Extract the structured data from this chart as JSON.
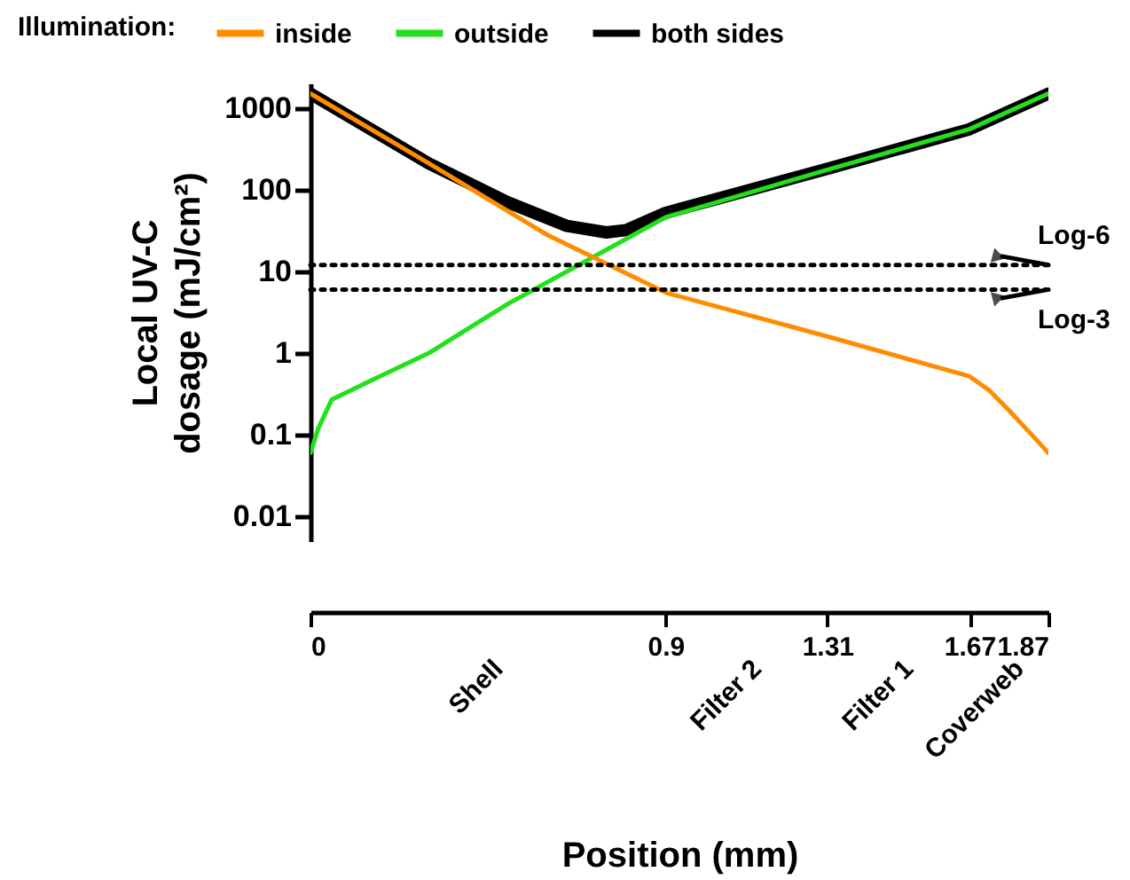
{
  "chart_data": {
    "type": "line",
    "xlabel": "Position (mm)",
    "ylabel": "Local UV-C dosage (mJ/cm²)",
    "legend_title": "Illumination:",
    "legend": "top",
    "log": "y",
    "xlim": [
      0,
      1.87
    ],
    "xticks": [
      0,
      0.9,
      1.31,
      1.67,
      1.87
    ],
    "ylim": [
      0.005,
      2000
    ],
    "yticks": [
      0.01,
      0.1,
      1,
      10,
      100,
      1000
    ],
    "series": [
      {
        "name": "inside",
        "color": "#ff8c00",
        "x": [
          0,
          0.3,
          0.6,
          0.9,
          1.31,
          1.67,
          1.72,
          1.77,
          1.82,
          1.87
        ],
        "values": [
          1500,
          210,
          28,
          5.5,
          1.6,
          0.52,
          0.35,
          0.2,
          0.11,
          0.06
        ]
      },
      {
        "name": "outside",
        "color": "#22e01c",
        "x": [
          0,
          0.02,
          0.054,
          0.144,
          0.3,
          0.5,
          0.65,
          0.9,
          1.31,
          1.67,
          1.87
        ],
        "values": [
          0.06,
          0.12,
          0.27,
          0.44,
          1,
          4,
          10,
          46,
          175,
          550,
          1500
        ]
      },
      {
        "name": "both sides",
        "color": "#000000",
        "x": [
          0,
          0.3,
          0.5,
          0.65,
          0.75,
          0.8,
          0.9,
          1.31,
          1.67,
          1.87
        ],
        "values": [
          1500,
          210,
          70,
          36,
          30,
          32,
          52,
          180,
          550,
          1500
        ]
      }
    ],
    "ref_lines": [
      {
        "axis": "y",
        "value": 12,
        "label": "Log-6",
        "color": "#000000",
        "line_style": "dotted"
      },
      {
        "axis": "y",
        "value": 6,
        "label": "Log-3",
        "color": "#000000",
        "line_style": "dotted"
      }
    ],
    "annotations": [
      "Shell",
      "Filter 2",
      "Filter 1",
      "Coverweb"
    ]
  }
}
